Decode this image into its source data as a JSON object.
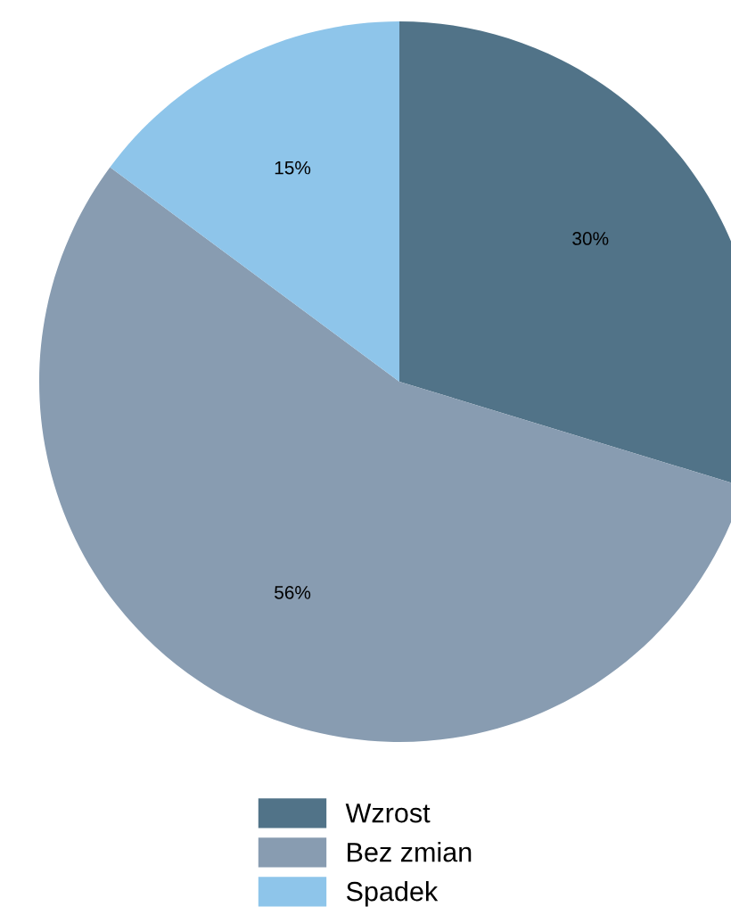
{
  "chart_data": {
    "type": "pie",
    "categories": [
      "Wzrost",
      "Bez zmian",
      "Spadek"
    ],
    "values": [
      30,
      56,
      15
    ],
    "colors": [
      "#517388",
      "#889cb1",
      "#8ec5ea"
    ],
    "value_labels": [
      "30%",
      "56%",
      "15%"
    ],
    "legend": "bottom"
  }
}
